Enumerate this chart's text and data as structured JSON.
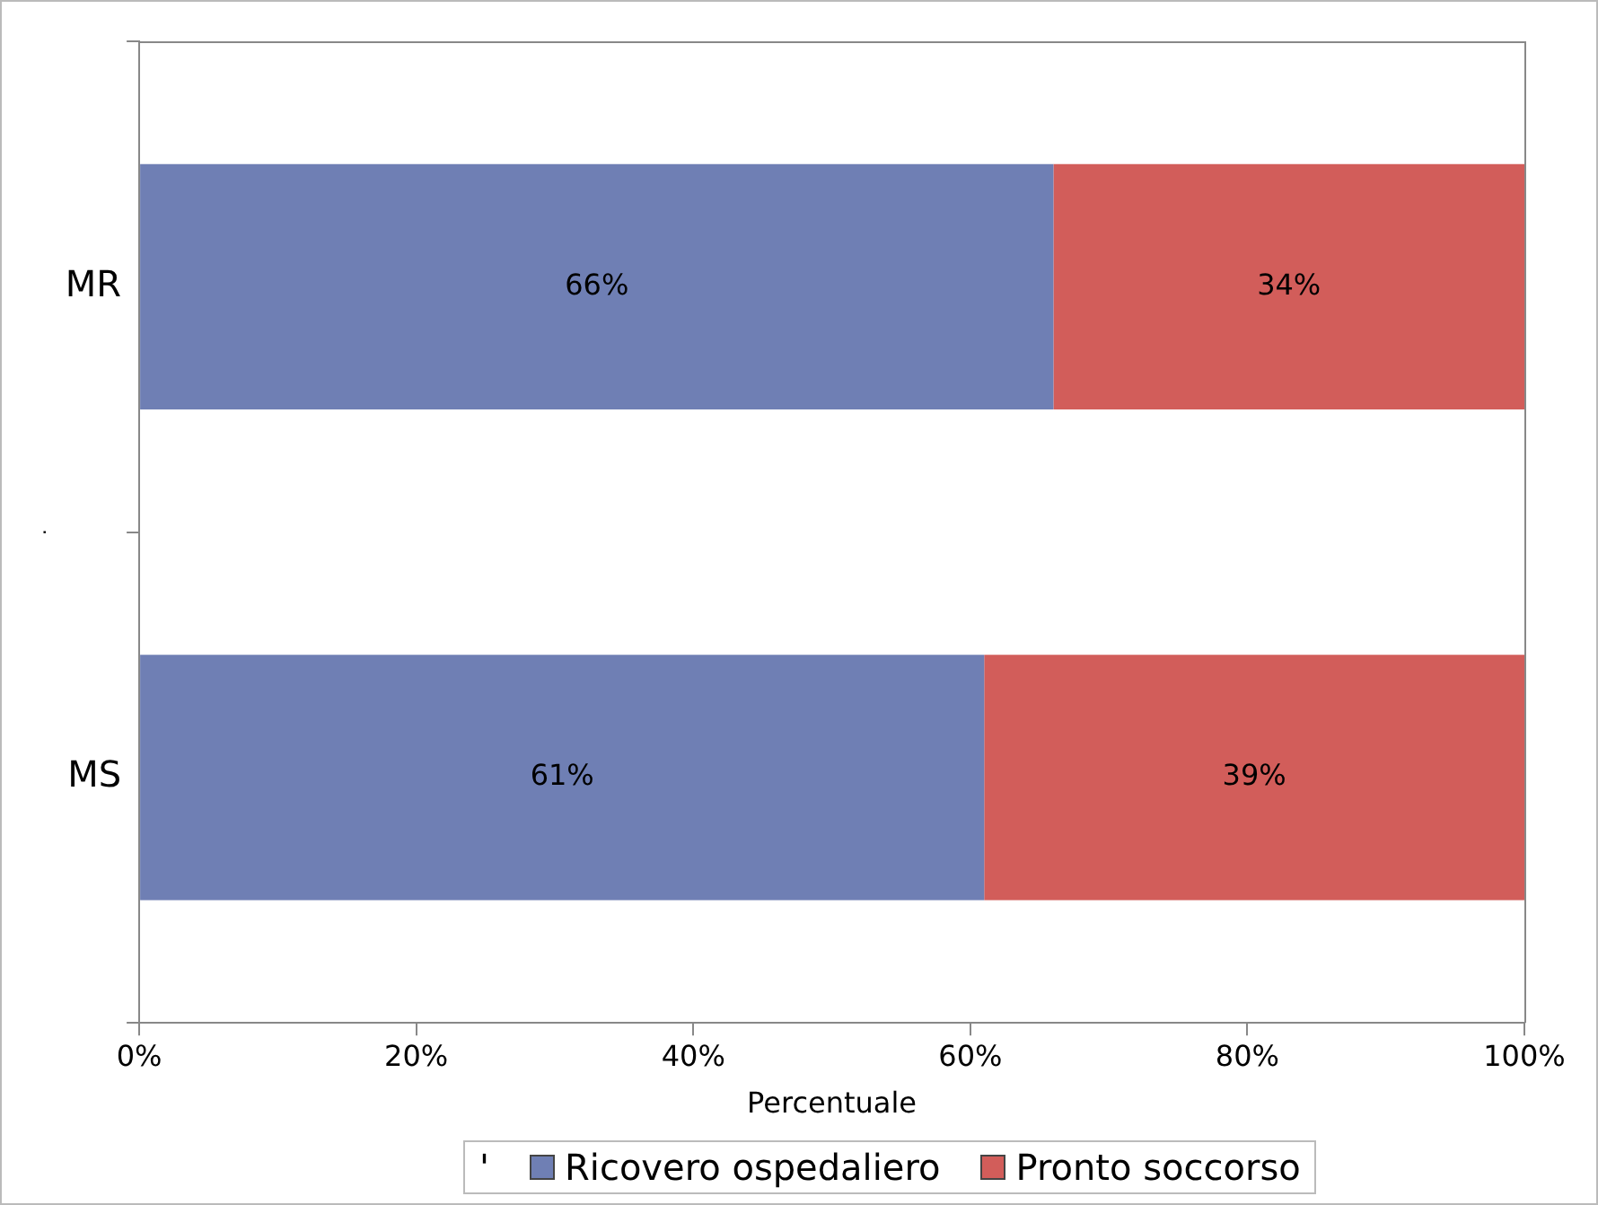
{
  "chart_data": {
    "type": "bar",
    "orientation": "horizontal",
    "stacked": true,
    "xlabel": "Percentuale",
    "ylabel": ".",
    "legend_title": "'",
    "legend": "bottom",
    "grid": false,
    "categories": [
      "MR",
      "MS"
    ],
    "series": [
      {
        "name": "Ricovero ospedaliero",
        "color": "#6f7fb4",
        "values": [
          66,
          61
        ],
        "value_labels": [
          "66%",
          "61%"
        ]
      },
      {
        "name": "Pronto soccorso",
        "color": "#d25d5a",
        "values": [
          34,
          39
        ],
        "value_labels": [
          "34%",
          "39%"
        ]
      }
    ],
    "xlim": [
      0,
      100
    ],
    "xticks": [
      {
        "value": 0,
        "label": "0%"
      },
      {
        "value": 20,
        "label": "20%"
      },
      {
        "value": 40,
        "label": "40%"
      },
      {
        "value": 60,
        "label": "60%"
      },
      {
        "value": 80,
        "label": "80%"
      },
      {
        "value": 100,
        "label": "100%"
      }
    ]
  }
}
